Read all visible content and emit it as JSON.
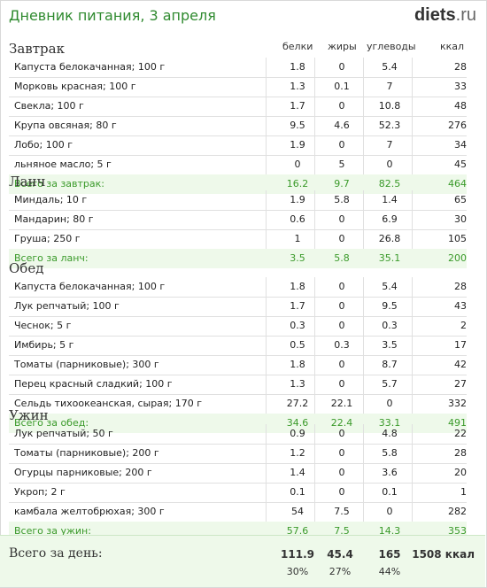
{
  "header": {
    "title": "Дневник питания, 3 апреля",
    "brand": "diets",
    "brand_dot": ".",
    "brand_tld": "ru"
  },
  "columns": {
    "protein": "белки",
    "fat": "жиры",
    "carbs": "углеводы",
    "kcal": "ккал"
  },
  "meals": [
    {
      "title": "Завтрак",
      "items": [
        [
          "Капуста белокачанная; 100 г",
          "1.8",
          "0",
          "5.4",
          "28"
        ],
        [
          "Морковь красная; 100 г",
          "1.3",
          "0.1",
          "7",
          "33"
        ],
        [
          "Свекла; 100 г",
          "1.7",
          "0",
          "10.8",
          "48"
        ],
        [
          "Крупа овсяная; 80 г",
          "9.5",
          "4.6",
          "52.3",
          "276"
        ],
        [
          "Лобо; 100 г",
          "1.9",
          "0",
          "7",
          "34"
        ],
        [
          "льняное масло; 5 г",
          "0",
          "5",
          "0",
          "45"
        ]
      ],
      "total": [
        "Всего за завтрак:",
        "16.2",
        "9.7",
        "82.5",
        "464"
      ]
    },
    {
      "title": "Ланч",
      "items": [
        [
          "Миндаль; 10 г",
          "1.9",
          "5.8",
          "1.4",
          "65"
        ],
        [
          "Мандарин; 80 г",
          "0.6",
          "0",
          "6.9",
          "30"
        ],
        [
          "Груша; 250 г",
          "1",
          "0",
          "26.8",
          "105"
        ]
      ],
      "total": [
        "Всего за ланч:",
        "3.5",
        "5.8",
        "35.1",
        "200"
      ]
    },
    {
      "title": "Обед",
      "items": [
        [
          "Капуста белокачанная; 100 г",
          "1.8",
          "0",
          "5.4",
          "28"
        ],
        [
          "Лук репчатый; 100 г",
          "1.7",
          "0",
          "9.5",
          "43"
        ],
        [
          "Чеснок; 5 г",
          "0.3",
          "0",
          "0.3",
          "2"
        ],
        [
          "Имбирь; 5 г",
          "0.5",
          "0.3",
          "3.5",
          "17"
        ],
        [
          "Томаты (парниковые); 300 г",
          "1.8",
          "0",
          "8.7",
          "42"
        ],
        [
          "Перец красный сладкий; 100 г",
          "1.3",
          "0",
          "5.7",
          "27"
        ],
        [
          "Сельдь тихоокеанская, сырая; 170 г",
          "27.2",
          "22.1",
          "0",
          "332"
        ]
      ],
      "total": [
        "Всего за обед:",
        "34.6",
        "22.4",
        "33.1",
        "491"
      ]
    },
    {
      "title": "Ужин",
      "items": [
        [
          "Лук репчатый; 50 г",
          "0.9",
          "0",
          "4.8",
          "22"
        ],
        [
          "Томаты (парниковые); 200 г",
          "1.2",
          "0",
          "5.8",
          "28"
        ],
        [
          "Огурцы парниковые; 200 г",
          "1.4",
          "0",
          "3.6",
          "20"
        ],
        [
          "Укроп; 2 г",
          "0.1",
          "0",
          "0.1",
          "1"
        ],
        [
          "камбала желтобрюхая; 300 г",
          "54",
          "7.5",
          "0",
          "282"
        ]
      ],
      "total": [
        "Всего за ужин:",
        "57.6",
        "7.5",
        "14.3",
        "353"
      ]
    }
  ],
  "day": {
    "label": "Всего за день:",
    "protein": "111.9",
    "fat": "45.4",
    "carbs": "165",
    "kcal": "1508 ккал",
    "protein_pct": "30%",
    "fat_pct": "27%",
    "carbs_pct": "44%"
  }
}
